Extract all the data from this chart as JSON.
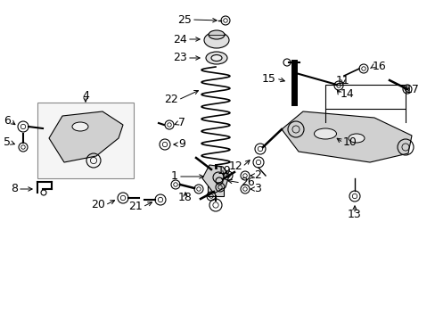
{
  "bg_color": "#ffffff",
  "fig_width": 4.89,
  "fig_height": 3.6,
  "dpi": 100,
  "line_color": "#000000",
  "text_color": "#000000",
  "font_size": 9.0
}
